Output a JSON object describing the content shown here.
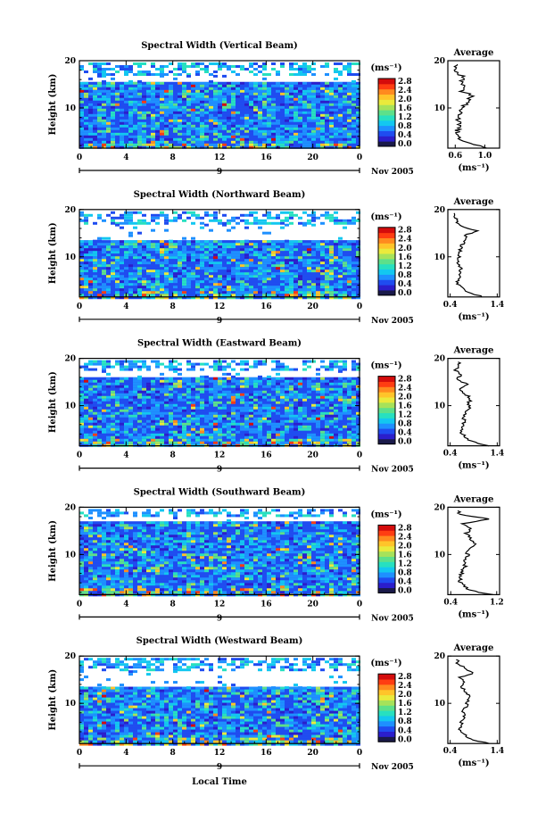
{
  "xlabel": "Local Time",
  "ylabel": "Height (km)",
  "date_label": "Nov 2005",
  "day_label": "9",
  "unit_label": "(ms⁻¹)",
  "avg_xlabel": "(ms⁻¹)",
  "avg_title": "Average",
  "x_ticks": [
    "0",
    "4",
    "8",
    "12",
    "16",
    "20",
    "0"
  ],
  "y_ticks": [
    "20",
    "10"
  ],
  "colorbar_ticks": [
    "2.8",
    "2.4",
    "2.0",
    "1.6",
    "1.2",
    "0.8",
    "0.4",
    "0.0"
  ],
  "colors": {
    "colorbar": [
      "#1a1a4a",
      "#2b1ecc",
      "#1f4cf0",
      "#1e90ff",
      "#13c7f0",
      "#27e0c0",
      "#5de08a",
      "#a6e25a",
      "#eaea3c",
      "#ffc42a",
      "#ff8a1f",
      "#ff3d12",
      "#d40c0c"
    ],
    "field_base": "#2d5ae8"
  },
  "chart_data": [
    {
      "type": "heatmap",
      "title": "Spectral Width (Vertical Beam)",
      "x_range": [
        0,
        24
      ],
      "y_range": [
        1.5,
        20
      ],
      "avg_ticks": [
        "0.6",
        "1.0"
      ],
      "avg_xlim": [
        0.5,
        1.2
      ],
      "gap_km": [
        15.5,
        17.0
      ],
      "avg_profile": {
        "height_km": [
          2,
          3,
          4,
          5,
          6,
          7,
          8,
          9,
          10,
          11,
          12,
          13,
          14,
          15,
          16,
          17,
          18,
          19
        ],
        "value": [
          1.05,
          0.78,
          0.65,
          0.62,
          0.64,
          0.66,
          0.63,
          0.67,
          0.66,
          0.72,
          0.76,
          0.85,
          0.7,
          0.75,
          0.68,
          0.72,
          0.6,
          0.62
        ]
      }
    },
    {
      "type": "heatmap",
      "title": "Spectral Width (Northward Beam)",
      "x_range": [
        0,
        24
      ],
      "y_range": [
        1.5,
        20
      ],
      "avg_ticks": [
        "0.4",
        "1.4"
      ],
      "avg_xlim": [
        0.35,
        1.45
      ],
      "gap_km": [
        13.5,
        17.0
      ],
      "avg_profile": {
        "height_km": [
          2,
          3,
          4,
          5,
          6,
          7,
          8,
          9,
          10,
          11,
          12,
          13,
          14,
          15,
          16,
          17,
          18,
          19
        ],
        "value": [
          1.1,
          0.8,
          0.65,
          0.55,
          0.6,
          0.58,
          0.62,
          0.56,
          0.6,
          0.58,
          0.62,
          0.65,
          0.7,
          0.72,
          0.95,
          0.6,
          0.55,
          0.5
        ]
      }
    },
    {
      "type": "heatmap",
      "title": "Spectral Width (Eastward Beam)",
      "x_range": [
        0,
        24
      ],
      "y_range": [
        1.5,
        20
      ],
      "avg_ticks": [
        "0.4",
        "1.4"
      ],
      "avg_xlim": [
        0.35,
        1.45
      ],
      "gap_km": [
        16.0,
        17.5
      ],
      "avg_profile": {
        "height_km": [
          2,
          3,
          4,
          5,
          6,
          7,
          8,
          9,
          10,
          11,
          12,
          13,
          14,
          15,
          16,
          17,
          18,
          19
        ],
        "value": [
          1.2,
          0.85,
          0.7,
          0.62,
          0.65,
          0.7,
          0.68,
          0.72,
          0.8,
          0.78,
          0.85,
          0.7,
          0.6,
          0.75,
          0.55,
          0.62,
          0.5,
          0.58
        ]
      }
    },
    {
      "type": "heatmap",
      "title": "Spectral Width (Southward Beam)",
      "x_range": [
        0,
        24
      ],
      "y_range": [
        1.5,
        20
      ],
      "avg_ticks": [
        "0.4",
        "1.2"
      ],
      "avg_xlim": [
        0.35,
        1.25
      ],
      "gap_km": [
        17.0,
        18.0
      ],
      "avg_profile": {
        "height_km": [
          2,
          3,
          4,
          5,
          6,
          7,
          8,
          9,
          10,
          11,
          12,
          13,
          14,
          15,
          16,
          17,
          18,
          19
        ],
        "value": [
          1.1,
          0.72,
          0.62,
          0.55,
          0.58,
          0.6,
          0.64,
          0.62,
          0.68,
          0.7,
          0.78,
          0.82,
          0.75,
          0.68,
          0.72,
          0.6,
          1.05,
          0.55
        ]
      }
    },
    {
      "type": "heatmap",
      "title": "Spectral Width (Westward Beam)",
      "x_range": [
        0,
        24
      ],
      "y_range": [
        1.5,
        20
      ],
      "avg_ticks": [
        "0.4",
        "1.4"
      ],
      "avg_xlim": [
        0.35,
        1.45
      ],
      "gap_km": [
        13.5,
        17.0
      ],
      "avg_profile": {
        "height_km": [
          2,
          3,
          4,
          5,
          6,
          7,
          8,
          9,
          10,
          11,
          12,
          13,
          14,
          15,
          16,
          17,
          18,
          19
        ],
        "value": [
          1.25,
          0.8,
          0.68,
          0.6,
          0.62,
          0.66,
          0.7,
          0.68,
          0.74,
          0.78,
          0.82,
          0.72,
          0.66,
          0.7,
          0.62,
          0.9,
          0.7,
          0.55
        ]
      }
    }
  ]
}
